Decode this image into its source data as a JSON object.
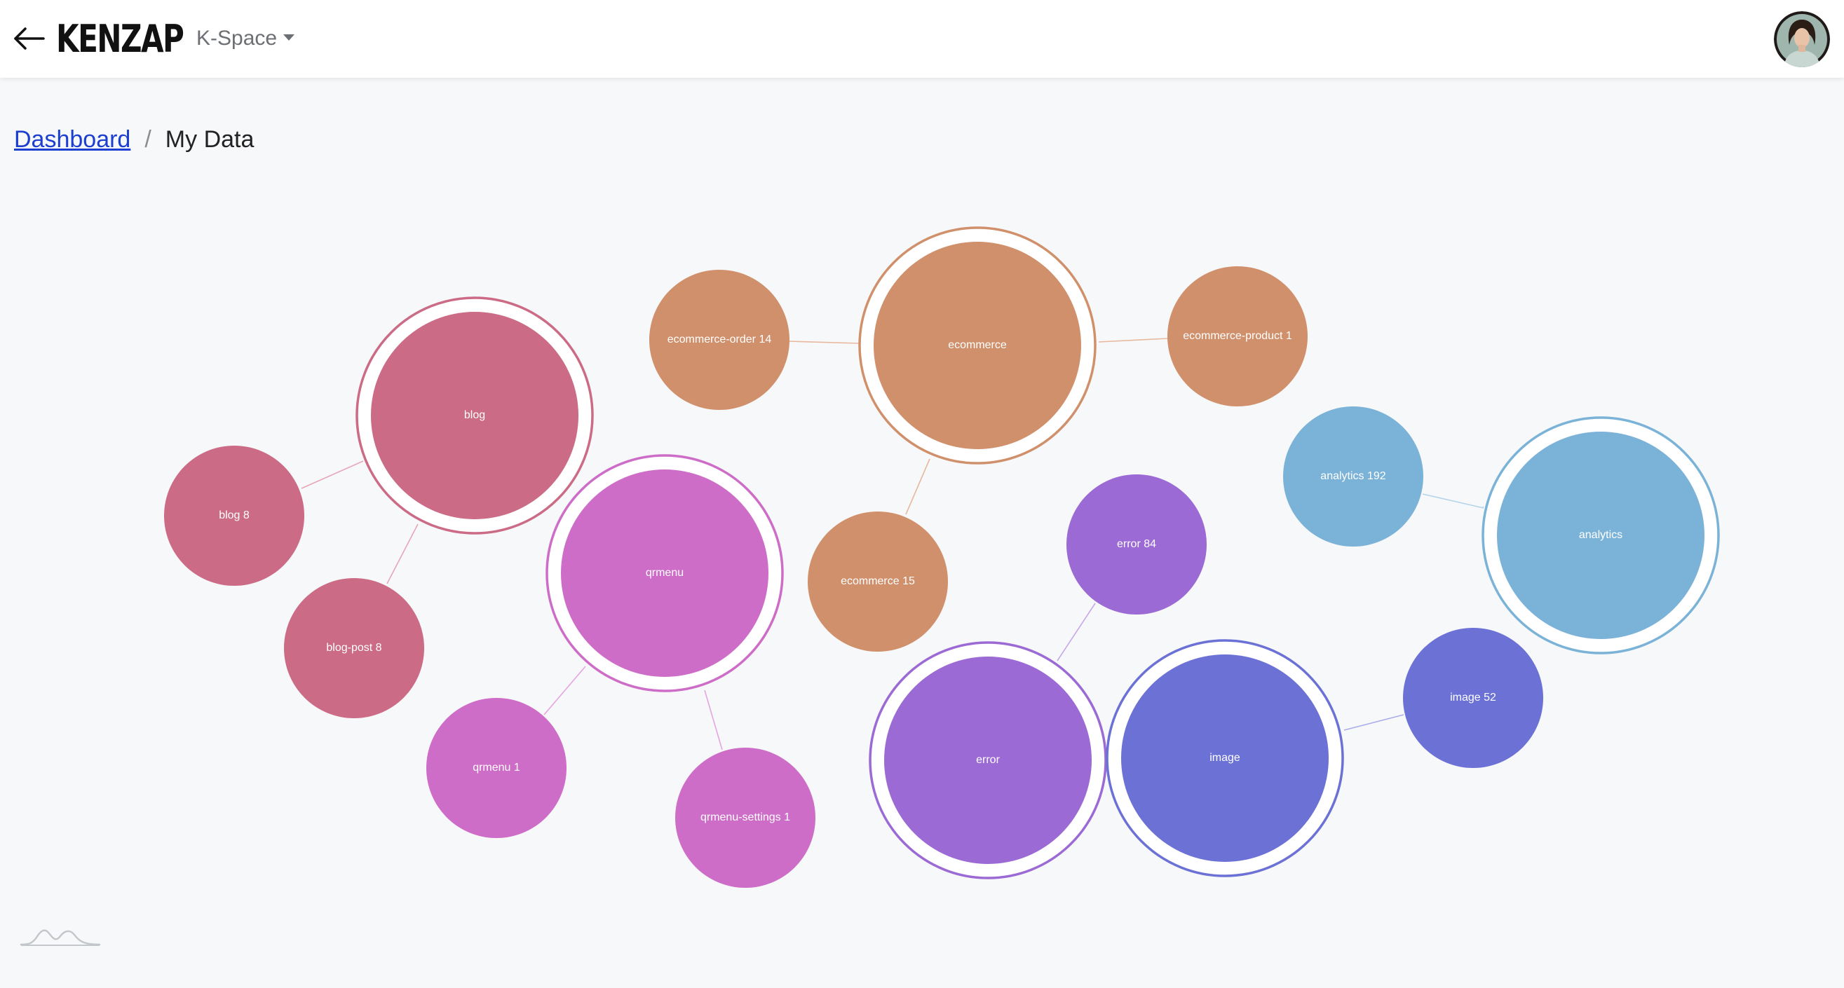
{
  "header": {
    "back_icon": "arrow-left-icon",
    "logo_text": "KENZAP",
    "space_selector": {
      "label": "K-Space",
      "icon": "caret-down-icon"
    },
    "avatar_icon": "user-avatar"
  },
  "breadcrumb": {
    "link_label": "Dashboard",
    "separator": "/",
    "current": "My Data"
  },
  "graph": {
    "colors": {
      "blog": "#cc6b86",
      "qrmenu": "#cd6dc8",
      "ecommerce": "#d0906b",
      "error": "#9b6ad5",
      "image": "#6b71d5",
      "analytics": "#7bb3d8"
    },
    "groups": [
      {
        "id": "blog",
        "label": "blog",
        "color_key": "blog",
        "children": [
          {
            "label": "blog 8"
          },
          {
            "label": "blog-post 8"
          }
        ]
      },
      {
        "id": "qrmenu",
        "label": "qrmenu",
        "color_key": "qrmenu",
        "children": [
          {
            "label": "qrmenu 1"
          },
          {
            "label": "qrmenu-settings 1"
          }
        ]
      },
      {
        "id": "ecommerce",
        "label": "ecommerce",
        "color_key": "ecommerce",
        "children": [
          {
            "label": "ecommerce-order 14"
          },
          {
            "label": "ecommerce-product 1"
          },
          {
            "label": "ecommerce 15"
          }
        ]
      },
      {
        "id": "error",
        "label": "error",
        "color_key": "error",
        "children": [
          {
            "label": "error 84"
          }
        ]
      },
      {
        "id": "image",
        "label": "image",
        "color_key": "image",
        "children": [
          {
            "label": "image 52"
          }
        ]
      },
      {
        "id": "analytics",
        "label": "analytics",
        "color_key": "analytics",
        "children": [
          {
            "label": "analytics 192"
          }
        ]
      }
    ]
  },
  "footer": {
    "icon": "mountain-logo-icon"
  }
}
